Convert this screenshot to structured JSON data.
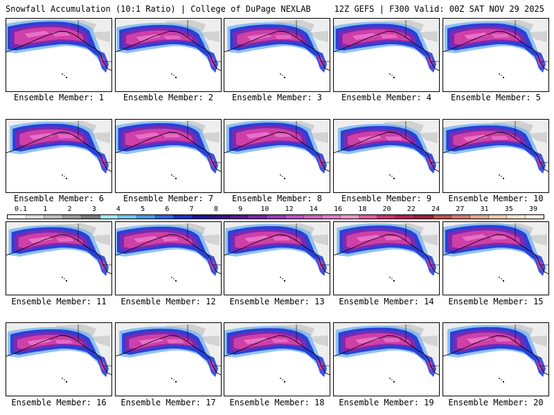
{
  "header": {
    "title": "Snowfall Accumulation (10:1 Ratio) | College of DuPage NEXLAB",
    "run_info": "12Z GEFS | F300 Valid: 00Z SAT NOV 29 2025"
  },
  "members": [
    {
      "label": "Ensemble Member: 1"
    },
    {
      "label": "Ensemble Member: 2"
    },
    {
      "label": "Ensemble Member: 3"
    },
    {
      "label": "Ensemble Member: 4"
    },
    {
      "label": "Ensemble Member: 5"
    },
    {
      "label": "Ensemble Member: 6"
    },
    {
      "label": "Ensemble Member: 7"
    },
    {
      "label": "Ensemble Member: 8"
    },
    {
      "label": "Ensemble Member: 9"
    },
    {
      "label": "Ensemble Member: 10"
    },
    {
      "label": "Ensemble Member: 11"
    },
    {
      "label": "Ensemble Member: 12"
    },
    {
      "label": "Ensemble Member: 13"
    },
    {
      "label": "Ensemble Member: 14"
    },
    {
      "label": "Ensemble Member: 15"
    },
    {
      "label": "Ensemble Member: 16"
    },
    {
      "label": "Ensemble Member: 17"
    },
    {
      "label": "Ensemble Member: 18"
    },
    {
      "label": "Ensemble Member: 19"
    },
    {
      "label": "Ensemble Member: 20"
    }
  ],
  "legend": {
    "labels": [
      "0.1",
      "1",
      "2",
      "3",
      "4",
      "5",
      "6",
      "7",
      "8",
      "9",
      "10",
      "12",
      "14",
      "16",
      "18",
      "20",
      "22",
      "24",
      "27",
      "31",
      "35",
      "39"
    ],
    "colors": [
      "#ffffff",
      "#dcdcdc",
      "#bdbdbd",
      "#9a9a9a",
      "#7a7a7a",
      "#9fe8f5",
      "#6ec6f0",
      "#4a96e8",
      "#2d62e0",
      "#1732c8",
      "#1a10a8",
      "#3a0a8a",
      "#5a1596",
      "#7d24a8",
      "#9b38b8",
      "#b94fc4",
      "#cf62c6",
      "#e07ac8",
      "#ee93c6",
      "#e15a9a",
      "#cf2f6e",
      "#b81f4f",
      "#a01a3c",
      "#c0504a",
      "#d2786a",
      "#e5a38c",
      "#f2c8ad",
      "#fae4cc",
      "#fff4e4"
    ]
  },
  "colors": {
    "ocean": "#ffffff",
    "land_light": "#eeeeee",
    "land_mid": "#c8c8c8",
    "snow_light": "#7eb8ee",
    "snow_blue": "#2a40d8",
    "snow_purple": "#7a2ab0",
    "snow_magenta": "#cf3fa8",
    "snow_pink": "#e870c8",
    "coast": "#000000"
  }
}
